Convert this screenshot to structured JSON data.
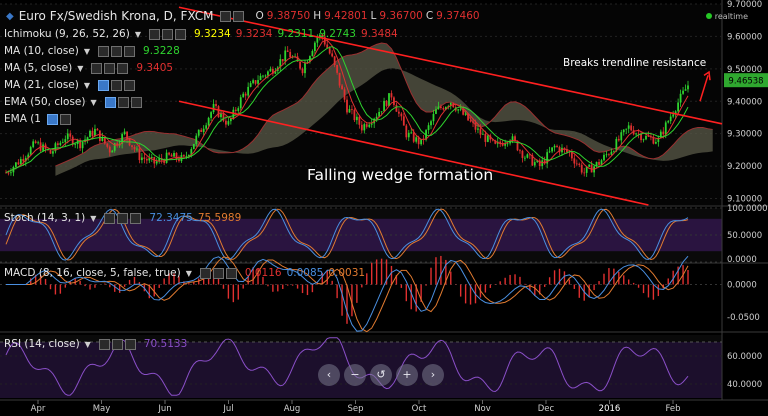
{
  "title": {
    "symbol": "Euro Fx/Swedish Krona, D, FXCM",
    "o_label": "O",
    "o_value": "9.38750",
    "h_label": "H",
    "h_value": "9.42801",
    "l_label": "L",
    "l_value": "9.36700",
    "c_label": "C",
    "c_value": "9.37460"
  },
  "realtime_label": "realtime",
  "indicators": {
    "ichimoku": {
      "label": "Ichimoku (9, 26, 52, 26)",
      "values": [
        "9.3234",
        "9.3234",
        "9.2311",
        "9.2743",
        "9.3484"
      ],
      "colors": [
        "#ffff00",
        "#e03030",
        "#2fd42f",
        "#2fd42f",
        "#e03030"
      ]
    },
    "ma10": {
      "label": "MA (10, close)",
      "value": "9.3228",
      "color": "#2fd42f"
    },
    "ma5": {
      "label": "MA (5, close)",
      "value": "9.3405",
      "color": "#e03030"
    },
    "ma21": {
      "label": "MA (21, close)",
      "value": "",
      "color": "#5a9bd5"
    },
    "ema50": {
      "label": "EMA (50, close)",
      "value": "",
      "color": "#5a9bd5"
    },
    "ema": {
      "label": "EMA (1",
      "value": "",
      "color": "#5a9bd5"
    },
    "stoch": {
      "label": "Stoch (14, 3, 1)",
      "values": [
        "72.3475",
        "75.5989"
      ],
      "colors": [
        "#4a8fe0",
        "#e07a30"
      ]
    },
    "macd": {
      "label": "MACD (8, 16, close, 5, false, true)",
      "values": [
        "0.0116",
        "0.0085",
        "0.0031"
      ],
      "colors": [
        "#e03030",
        "#4a8fe0",
        "#e07a30"
      ]
    },
    "rsi": {
      "label": "RSI (14, close)",
      "value": "70.5133",
      "color": "#8a4fc8"
    }
  },
  "annotations": {
    "breaks": "Breaks trendline resistance",
    "wedge": "Falling wedge formation"
  },
  "toolbar": [
    "‹",
    "−",
    "↺",
    "+",
    "›"
  ],
  "chart_data": {
    "type": "candlestick",
    "x_labels": [
      "Apr",
      "May",
      "Jun",
      "Jul",
      "Aug",
      "Sep",
      "Oct",
      "Nov",
      "Dec",
      "2016",
      "Feb"
    ],
    "price": {
      "ylim": [
        9.08,
        9.7
      ],
      "ticks": [
        "9.70000",
        "9.60000",
        "9.50000",
        "9.40000",
        "9.30000",
        "9.20000",
        "9.10000"
      ],
      "tick_values": [
        9.7,
        9.6,
        9.5,
        9.4,
        9.3,
        9.2,
        9.1
      ],
      "last_price": "9.46538",
      "close_path": [
        [
          0,
          9.18
        ],
        [
          6,
          9.22
        ],
        [
          12,
          9.27
        ],
        [
          18,
          9.24
        ],
        [
          24,
          9.29
        ],
        [
          30,
          9.27
        ],
        [
          36,
          9.31
        ],
        [
          42,
          9.25
        ],
        [
          48,
          9.3
        ],
        [
          54,
          9.23
        ],
        [
          60,
          9.21
        ],
        [
          66,
          9.23
        ],
        [
          72,
          9.22
        ],
        [
          78,
          9.3
        ],
        [
          84,
          9.38
        ],
        [
          90,
          9.33
        ],
        [
          96,
          9.42
        ],
        [
          102,
          9.47
        ],
        [
          108,
          9.5
        ],
        [
          114,
          9.55
        ],
        [
          120,
          9.5
        ],
        [
          126,
          9.6
        ],
        [
          128,
          9.6
        ],
        [
          132,
          9.53
        ],
        [
          138,
          9.38
        ],
        [
          144,
          9.32
        ],
        [
          150,
          9.36
        ],
        [
          156,
          9.42
        ],
        [
          162,
          9.3
        ],
        [
          168,
          9.27
        ],
        [
          174,
          9.37
        ],
        [
          180,
          9.4
        ],
        [
          186,
          9.35
        ],
        [
          192,
          9.3
        ],
        [
          198,
          9.26
        ],
        [
          204,
          9.29
        ],
        [
          210,
          9.23
        ],
        [
          216,
          9.2
        ],
        [
          222,
          9.26
        ],
        [
          228,
          9.24
        ],
        [
          234,
          9.18
        ],
        [
          240,
          9.21
        ],
        [
          246,
          9.26
        ],
        [
          252,
          9.32
        ],
        [
          258,
          9.29
        ],
        [
          264,
          9.28
        ],
        [
          270,
          9.37
        ],
        [
          276,
          9.45
        ]
      ],
      "trendline_upper": [
        [
          70,
          9.69
        ],
        [
          290,
          9.33
        ]
      ],
      "trendline_lower": [
        [
          70,
          9.4
        ],
        [
          260,
          9.08
        ]
      ]
    },
    "stoch": {
      "ylim": [
        0,
        100
      ],
      "ticks": [
        "100.0000",
        "50.0000",
        "0.0000"
      ],
      "tick_values": [
        100,
        50,
        0
      ],
      "band": [
        80,
        20
      ]
    },
    "macd": {
      "ylim": [
        -0.07,
        0.03
      ],
      "ticks": [
        "0.0000",
        "-0.0500"
      ],
      "tick_values": [
        0,
        -0.05
      ]
    },
    "rsi": {
      "ylim": [
        30,
        75
      ],
      "ticks": [
        "60.0000",
        "40.0000"
      ],
      "tick_values": [
        60,
        40
      ],
      "band": [
        70,
        30
      ]
    }
  }
}
